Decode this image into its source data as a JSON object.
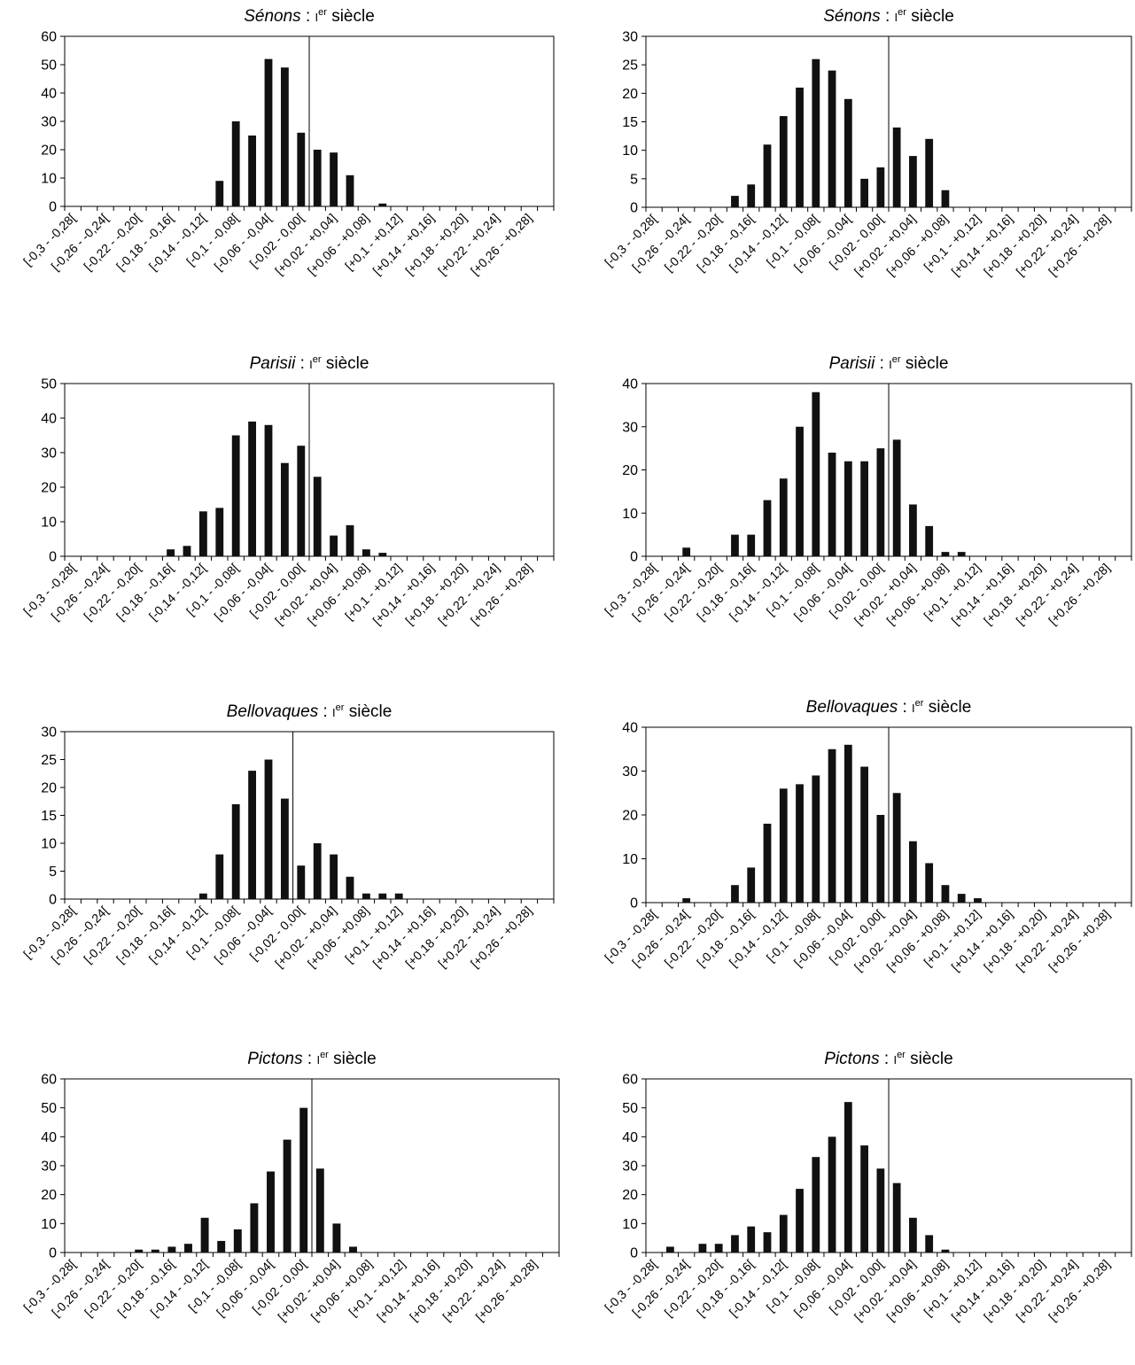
{
  "charts": [
    {
      "title_name": "Sénons",
      "title_sep": " : ",
      "title_roman": "I",
      "title_sup": "er",
      "title_rest": " siècle"
    },
    {
      "title_name": "Sénons",
      "title_sep": " : ",
      "title_roman": "I",
      "title_sup": "er",
      "title_rest": " siècle"
    },
    {
      "title_name": "Parisii",
      "title_sep": " : ",
      "title_roman": "I",
      "title_sup": "er",
      "title_rest": " siècle"
    },
    {
      "title_name": "Parisii",
      "title_sep": " : ",
      "title_roman": "I",
      "title_sup": "er",
      "title_rest": " siècle"
    },
    {
      "title_name": "Bellovaques",
      "title_sep": " : ",
      "title_roman": "I",
      "title_sup": "er",
      "title_rest": " siècle"
    },
    {
      "title_name": "Bellovaques",
      "title_sep": " : ",
      "title_roman": "I",
      "title_sup": "er",
      "title_rest": " siècle"
    },
    {
      "title_name": "Pictons",
      "title_sep": " : ",
      "title_roman": "I",
      "title_sup": "er",
      "title_rest": " siècle"
    },
    {
      "title_name": "Pictons",
      "title_sep": " : ",
      "title_roman": "I",
      "title_sup": "er",
      "title_rest": " siècle"
    }
  ],
  "chart_data": [
    {
      "type": "bar",
      "title": "Sénons : Ier siècle",
      "categories": [
        "[-0,3 - -0,28[",
        "",
        "[-0,26 - -0,24[",
        "",
        "[-0,22 - -0,20[",
        "",
        "[-0,18 - -0,16[",
        "",
        "[-0,14 - -0,12[",
        "",
        "[-0,1 - -0,08[",
        "",
        "[-0,06 - -0,04[",
        "",
        "[-0,02 - 0,00[",
        "",
        "[+0,02 - +0,04]",
        "",
        "[+0,06 - +0,08]",
        "",
        "[+0,1 - +0,12]",
        "",
        "[+0,14 - +0,16]",
        "",
        "[+0,18 - +0,20]",
        "",
        "[+0,22 - +0,24]",
        "",
        "[+0,26 - +0,28]",
        ""
      ],
      "values": [
        0,
        0,
        0,
        0,
        0,
        0,
        0,
        0,
        0,
        9,
        30,
        25,
        52,
        49,
        26,
        20,
        19,
        11,
        0,
        1,
        0,
        0,
        0,
        0,
        0,
        0,
        0,
        0,
        0,
        0
      ],
      "ylim": [
        0,
        60
      ],
      "yticks": [
        0,
        10,
        20,
        30,
        40,
        50,
        60
      ],
      "ref_line_after": 15
    },
    {
      "type": "bar",
      "title": "Sénons : Ier siècle",
      "categories": [
        "[-0,3 - -0,28[",
        "",
        "[-0,26 - -0,24[",
        "",
        "[-0,22 - -0,20[",
        "",
        "[-0,18 - -0,16[",
        "",
        "[-0,14 - -0,12[",
        "",
        "[-0,1 - -0,08[",
        "",
        "[-0,06 - -0,04[",
        "",
        "[-0,02 - 0,00[",
        "",
        "[+0,02 - +0,04]",
        "",
        "[+0,06 - +0,08]",
        "",
        "[+0,1 - +0,12]",
        "",
        "[+0,14 - +0,16]",
        "",
        "[+0,18 - +0,20]",
        "",
        "[+0,22 - +0,24]",
        "",
        "[+0,26 - +0,28]",
        ""
      ],
      "values": [
        0,
        0,
        0,
        0,
        0,
        2,
        4,
        11,
        16,
        21,
        26,
        24,
        19,
        5,
        7,
        14,
        9,
        12,
        3,
        0,
        0,
        0,
        0,
        0,
        0,
        0,
        0,
        0,
        0,
        0
      ],
      "ylim": [
        0,
        30
      ],
      "yticks": [
        0,
        5,
        10,
        15,
        20,
        25,
        30
      ],
      "ref_line_after": 15
    },
    {
      "type": "bar",
      "title": "Parisii : Ier siècle",
      "categories": [
        "[-0,3 - -0,28[",
        "",
        "[-0,26 - -0,24[",
        "",
        "[-0,22 - -0,20[",
        "",
        "[-0,18 - -0,16[",
        "",
        "[-0,14 - -0,12[",
        "",
        "[-0,1 - -0,08[",
        "",
        "[-0,06 - -0,04[",
        "",
        "[-0,02 - 0,00[",
        "",
        "[+0,02 - +0,04]",
        "",
        "[+0,06 - +0,08]",
        "",
        "[+0,1 - +0,12]",
        "",
        "[+0,14 - +0,16]",
        "",
        "[+0,18 - +0,20]",
        "",
        "[+0,22 - +0,24]",
        "",
        "[+0,26 - +0,28]",
        ""
      ],
      "values": [
        0,
        0,
        0,
        0,
        0,
        0,
        2,
        3,
        13,
        14,
        35,
        39,
        38,
        27,
        32,
        23,
        6,
        9,
        2,
        1,
        0,
        0,
        0,
        0,
        0,
        0,
        0,
        0,
        0,
        0
      ],
      "ylim": [
        0,
        50
      ],
      "yticks": [
        0,
        10,
        20,
        30,
        40,
        50
      ],
      "ref_line_after": 15
    },
    {
      "type": "bar",
      "title": "Parisii : Ier siècle",
      "categories": [
        "[-0,3 - -0,28[",
        "",
        "[-0,26 - -0,24[",
        "",
        "[-0,22 - -0,20[",
        "",
        "[-0,18 - -0,16[",
        "",
        "[-0,14 - -0,12[",
        "",
        "[-0,1 - -0,08[",
        "",
        "[-0,06 - -0,04[",
        "",
        "[-0,02 - 0,00[",
        "",
        "[+0,02 - +0,04]",
        "",
        "[+0,06 - +0,08]",
        "",
        "[+0,1 - +0,12]",
        "",
        "[+0,14 - +0,16]",
        "",
        "[+0,18 - +0,20]",
        "",
        "[+0,22 - +0,24]",
        "",
        "[+0,26 - +0,28]",
        ""
      ],
      "values": [
        0,
        0,
        2,
        0,
        0,
        5,
        5,
        13,
        18,
        30,
        38,
        24,
        22,
        22,
        25,
        27,
        12,
        7,
        1,
        1,
        0,
        0,
        0,
        0,
        0,
        0,
        0,
        0,
        0,
        0
      ],
      "ylim": [
        0,
        40
      ],
      "yticks": [
        0,
        10,
        20,
        30,
        40
      ],
      "ref_line_after": 15
    },
    {
      "type": "bar",
      "title": "Bellovaques : Ier siècle",
      "categories": [
        "[-0,3 - -0,28[",
        "",
        "[-0,26 - -0,24[",
        "",
        "[-0,22 - -0,20[",
        "",
        "[-0,18 - -0,16[",
        "",
        "[-0,14 - -0,12[",
        "",
        "[-0,1 - -0,08[",
        "",
        "[-0,06 - -0,04[",
        "",
        "[-0,02 - 0,00[",
        "",
        "[+0,02 - +0,04]",
        "",
        "[+0,06 - +0,08]",
        "",
        "[+0,1 - +0,12]",
        "",
        "[+0,14 - +0,16]",
        "",
        "[+0,18 - +0,20]",
        "",
        "[+0,22 - +0,24]",
        "",
        "[+0,26 - +0,28]",
        ""
      ],
      "values": [
        0,
        0,
        0,
        0,
        0,
        0,
        0,
        0,
        1,
        8,
        17,
        23,
        25,
        18,
        6,
        10,
        8,
        4,
        1,
        1,
        1,
        0,
        0,
        0,
        0,
        0,
        0,
        0,
        0,
        0
      ],
      "ylim": [
        0,
        30
      ],
      "yticks": [
        0,
        5,
        10,
        15,
        20,
        25,
        30
      ],
      "ref_line_after": 14
    },
    {
      "type": "bar",
      "title": "Bellovaques : Ier siècle",
      "categories": [
        "[-0,3 - -0,28[",
        "",
        "[-0,26 - -0,24[",
        "",
        "[-0,22 - -0,20[",
        "",
        "[-0,18 - -0,16[",
        "",
        "[-0,14 - -0,12[",
        "",
        "[-0,1 - -0,08[",
        "",
        "[-0,06 - -0,04[",
        "",
        "[-0,02 - 0,00[",
        "",
        "[+0,02 - +0,04]",
        "",
        "[+0,06 - +0,08]",
        "",
        "[+0,1 - +0,12]",
        "",
        "[+0,14 - +0,16]",
        "",
        "[+0,18 - +0,20]",
        "",
        "[+0,22 - +0,24]",
        "",
        "[+0,26 - +0,28]",
        ""
      ],
      "values": [
        0,
        0,
        1,
        0,
        0,
        4,
        8,
        18,
        26,
        27,
        29,
        35,
        36,
        31,
        20,
        25,
        14,
        9,
        4,
        2,
        1,
        0,
        0,
        0,
        0,
        0,
        0,
        0,
        0,
        0
      ],
      "ylim": [
        0,
        40
      ],
      "yticks": [
        0,
        10,
        20,
        30,
        40
      ],
      "ref_line_after": 15
    },
    {
      "type": "bar",
      "title": "Pictons : Ier siècle",
      "categories": [
        "[-0,3 - -0,28[",
        "",
        "[-0,26 - -0,24[",
        "",
        "[-0,22 - -0,20[",
        "",
        "[-0,18 - -0,16[",
        "",
        "[-0,14 - -0,12[",
        "",
        "[-0,1 - -0,08[",
        "",
        "[-0,06 - -0,04[",
        "",
        "[-0,02 - 0,00[",
        "",
        "[+0,02 - +0,04]",
        "",
        "[+0,06 - +0,08]",
        "",
        "[+0,1 - +0,12]",
        "",
        "[+0,14 - +0,16]",
        "",
        "[+0,18 - +0,20]",
        "",
        "[+0,22 - +0,24]",
        "",
        "[+0,26 - +0,28]",
        ""
      ],
      "values": [
        0,
        0,
        0,
        0,
        1,
        1,
        2,
        3,
        12,
        4,
        8,
        17,
        28,
        39,
        50,
        29,
        10,
        2,
        0,
        0,
        0,
        0,
        0,
        0,
        0,
        0,
        0,
        0,
        0,
        0
      ],
      "ylim": [
        0,
        60
      ],
      "yticks": [
        0,
        10,
        20,
        30,
        40,
        50,
        60
      ],
      "ref_line_after": 15
    },
    {
      "type": "bar",
      "title": "Pictons : Ier siècle",
      "categories": [
        "[-0,3 - -0,28[",
        "",
        "[-0,26 - -0,24[",
        "",
        "[-0,22 - -0,20[",
        "",
        "[-0,18 - -0,16[",
        "",
        "[-0,14 - -0,12[",
        "",
        "[-0,1 - -0,08[",
        "",
        "[-0,06 - -0,04[",
        "",
        "[-0,02 - 0,00[",
        "",
        "[+0,02 - +0,04]",
        "",
        "[+0,06 - +0,08]",
        "",
        "[+0,1 - +0,12]",
        "",
        "[+0,14 - +0,16]",
        "",
        "[+0,18 - +0,20]",
        "",
        "[+0,22 - +0,24]",
        "",
        "[+0,26 - +0,28]",
        ""
      ],
      "values": [
        0,
        2,
        0,
        3,
        3,
        6,
        9,
        7,
        13,
        22,
        33,
        40,
        52,
        37,
        29,
        24,
        12,
        6,
        1,
        0,
        0,
        0,
        0,
        0,
        0,
        0,
        0,
        0,
        0,
        0
      ],
      "ylim": [
        0,
        60
      ],
      "yticks": [
        0,
        10,
        20,
        30,
        40,
        50,
        60
      ],
      "ref_line_after": 15
    }
  ]
}
